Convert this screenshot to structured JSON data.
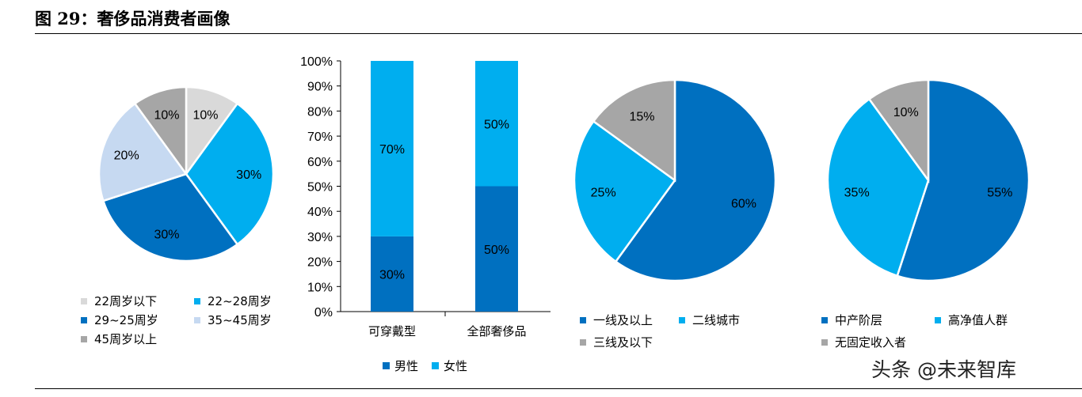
{
  "title": "图 29：奢侈品消费者画像",
  "watermark": "头条 @未来智库",
  "colors": {
    "light_gray": "#d9d9d9",
    "cyan": "#00aeef",
    "blue": "#0070c0",
    "light_blue": "#c6d9f1",
    "gray": "#a6a6a6"
  },
  "chart_data": [
    {
      "type": "pie",
      "name": "age",
      "slices": [
        {
          "label": "22周岁以下",
          "value": 10,
          "color": "#d9d9d9"
        },
        {
          "label": "22~28周岁",
          "value": 30,
          "color": "#00aeef"
        },
        {
          "label": "29~25周岁",
          "value": 30,
          "color": "#0070c0"
        },
        {
          "label": "35~45周岁",
          "value": 20,
          "color": "#c6d9f1"
        },
        {
          "label": "45周岁以上",
          "value": 10,
          "color": "#a6a6a6"
        }
      ],
      "value_labels": [
        "10%",
        "30%",
        "30%",
        "20%",
        "10%"
      ],
      "legend_placement": "bottom"
    },
    {
      "type": "bar",
      "name": "gender",
      "stacked": true,
      "categories": [
        "可穿戴型",
        "全部奢侈品"
      ],
      "series": [
        {
          "name": "男性",
          "values": [
            30,
            50
          ],
          "labels": [
            "30%",
            "50%"
          ],
          "color": "#0070c0"
        },
        {
          "name": "女性",
          "values": [
            70,
            50
          ],
          "labels": [
            "70%",
            "50%"
          ],
          "color": "#00aeef"
        }
      ],
      "ylim": [
        0,
        100
      ],
      "yticks": [
        "0%",
        "10%",
        "20%",
        "30%",
        "40%",
        "50%",
        "60%",
        "70%",
        "80%",
        "90%",
        "100%"
      ],
      "legend_placement": "bottom"
    },
    {
      "type": "pie",
      "name": "city-tier",
      "slices": [
        {
          "label": "一线及以上",
          "value": 60,
          "color": "#0070c0"
        },
        {
          "label": "二线城市",
          "value": 25,
          "color": "#00aeef"
        },
        {
          "label": "三线及以下",
          "value": 15,
          "color": "#a6a6a6"
        }
      ],
      "value_labels": [
        "60%",
        "25%",
        "15%"
      ],
      "legend_placement": "bottom"
    },
    {
      "type": "pie",
      "name": "income",
      "slices": [
        {
          "label": "中产阶层",
          "value": 55,
          "color": "#0070c0"
        },
        {
          "label": "高净值人群",
          "value": 35,
          "color": "#00aeef"
        },
        {
          "label": "无固定收入者",
          "value": 10,
          "color": "#a6a6a6"
        }
      ],
      "value_labels": [
        "55%",
        "35%",
        "10%"
      ],
      "legend_placement": "bottom"
    }
  ]
}
